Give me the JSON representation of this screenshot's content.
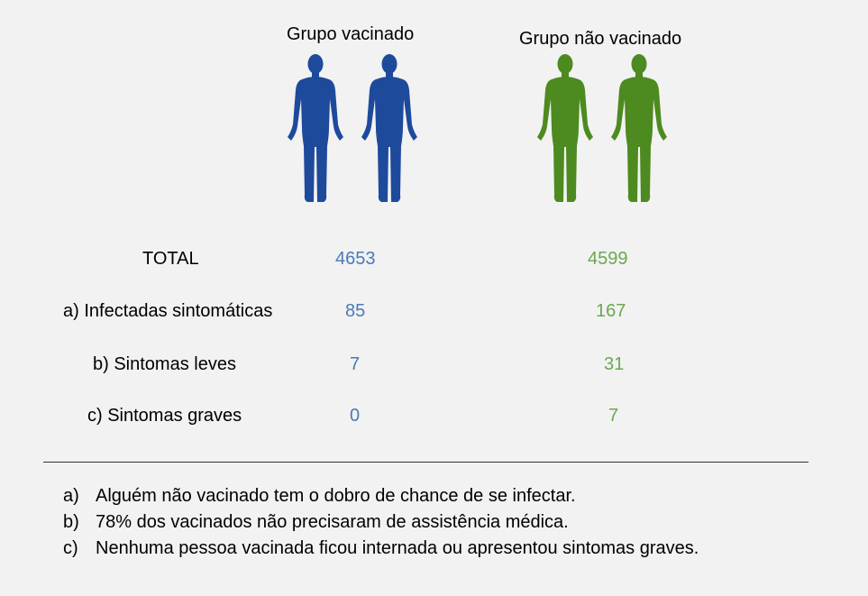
{
  "groups": {
    "vaccinated": {
      "title": "Grupo vacinado",
      "color": "#1e4a9c"
    },
    "unvaccinated": {
      "title": "Grupo não vacinado",
      "color": "#4d8a1f"
    }
  },
  "rows": [
    {
      "label": "TOTAL",
      "vaccinated": "4653",
      "unvaccinated": "4599"
    },
    {
      "label": "a) Infectadas sintomáticas",
      "vaccinated": "85",
      "unvaccinated": "167"
    },
    {
      "label": "b) Sintomas leves",
      "vaccinated": "7",
      "unvaccinated": "31"
    },
    {
      "label": "c) Sintomas graves",
      "vaccinated": "0",
      "unvaccinated": "7"
    }
  ],
  "notes": [
    {
      "letter": "a)",
      "text": "Alguém não vacinado tem o dobro de chance de se infectar."
    },
    {
      "letter": "b)",
      "text": "78% dos vacinados não precisaram de assistência médica."
    },
    {
      "letter": "c)",
      "text": "Nenhuma pessoa vacinada ficou internada ou apresentou sintomas graves."
    }
  ]
}
